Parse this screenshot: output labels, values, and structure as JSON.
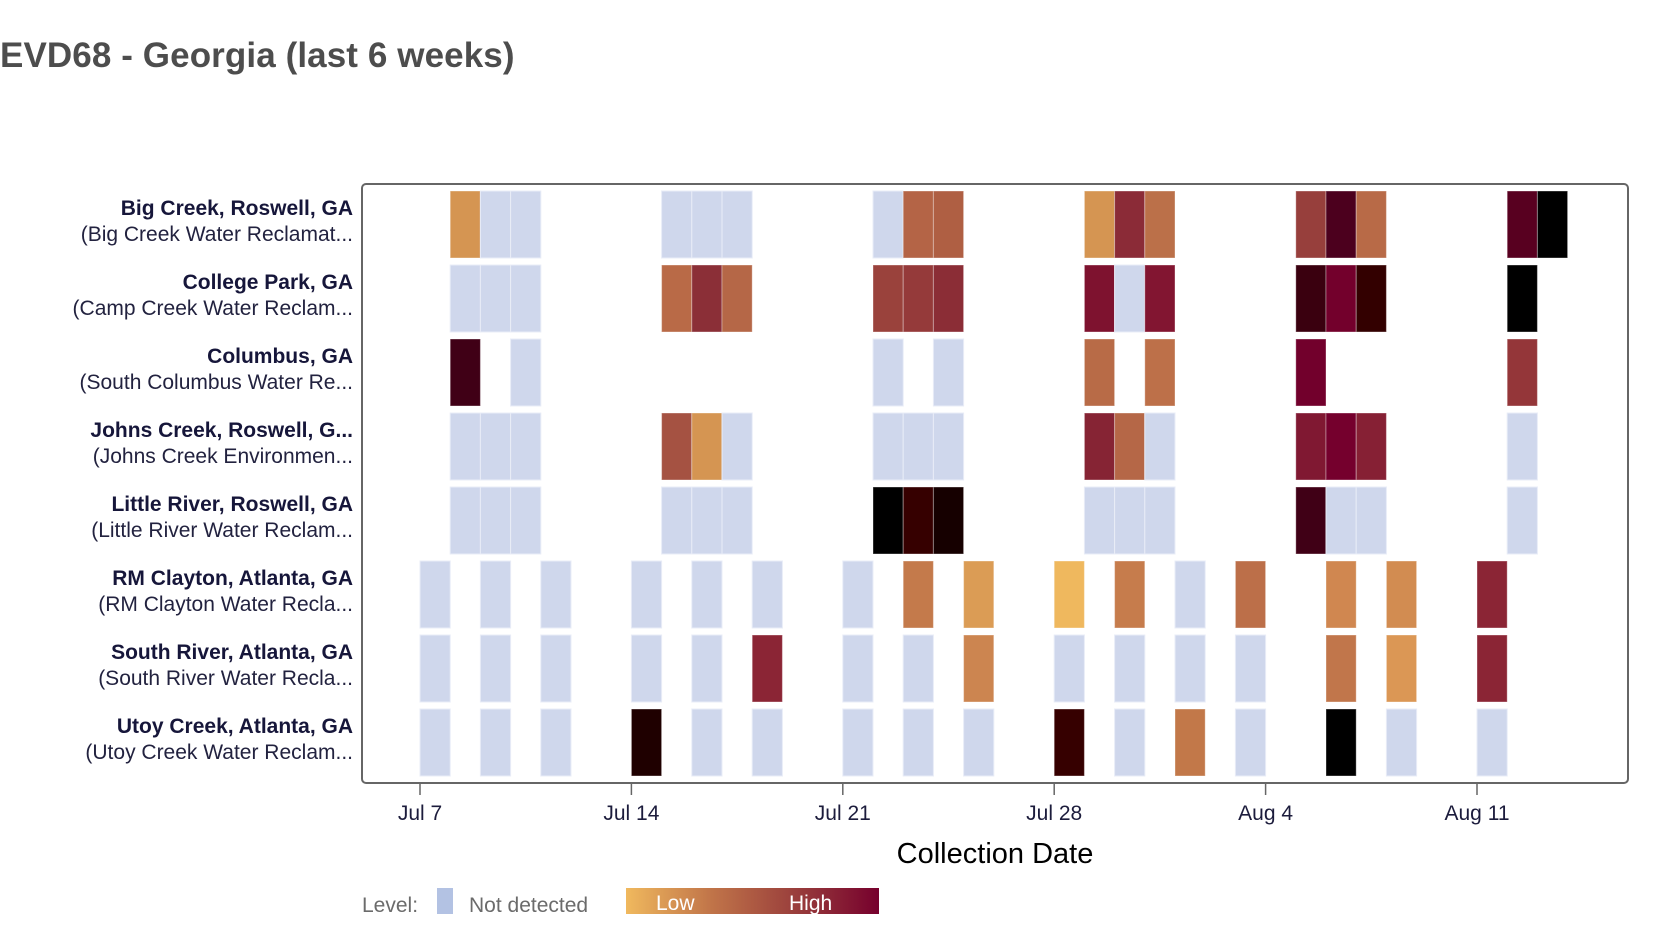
{
  "title": "EVD68 - Georgia (last 6 weeks)",
  "legend": {
    "label": "Level:",
    "not_detected_label": "Not detected",
    "not_detected_color": "#b3c2e3",
    "low_label": "Low",
    "high_label": "High",
    "gradient_colors": [
      "#f0b95e",
      "#c17549",
      "#9a3f3c",
      "#76002d"
    ]
  },
  "chart_data": {
    "type": "heatmap",
    "title": "EVD68 - Georgia (last 6 weeks)",
    "xlabel": "Collection Date",
    "ylabel": "",
    "x_ticks": [
      "Jul 7",
      "Jul 14",
      "Jul 21",
      "Jul 28",
      "Aug 4",
      "Aug 11"
    ],
    "x_start_date": "Jul 7",
    "x_range_days": [
      0,
      37
    ],
    "legend_position": "bottom-left",
    "not_detected_fill": "#cfd7ec",
    "rows": [
      {
        "site": "Big Creek, Roswell, GA",
        "facility": "(Big Creek Water Reclamat...",
        "cells": [
          {
            "date": "Jul 8",
            "day": 1,
            "level": "detected",
            "color": "#d59552"
          },
          {
            "date": "Jul 9",
            "day": 2,
            "level": "not_detected"
          },
          {
            "date": "Jul 10",
            "day": 3,
            "level": "not_detected"
          },
          {
            "date": "Jul 15",
            "day": 8,
            "level": "not_detected"
          },
          {
            "date": "Jul 16",
            "day": 9,
            "level": "not_detected"
          },
          {
            "date": "Jul 17",
            "day": 10,
            "level": "not_detected"
          },
          {
            "date": "Jul 22",
            "day": 15,
            "level": "not_detected"
          },
          {
            "date": "Jul 23",
            "day": 16,
            "level": "detected",
            "color": "#b46446"
          },
          {
            "date": "Jul 24",
            "day": 17,
            "level": "detected",
            "color": "#af5f43"
          },
          {
            "date": "Jul 29",
            "day": 22,
            "level": "detected",
            "color": "#d59552"
          },
          {
            "date": "Jul 30",
            "day": 23,
            "level": "detected",
            "color": "#8b2b37"
          },
          {
            "date": "Jul 31",
            "day": 24,
            "level": "detected",
            "color": "#bb7049"
          },
          {
            "date": "Aug 5",
            "day": 29,
            "level": "detected",
            "color": "#973f3c"
          },
          {
            "date": "Aug 6",
            "day": 30,
            "level": "detected",
            "color": "#4c001e"
          },
          {
            "date": "Aug 7",
            "day": 31,
            "level": "detected",
            "color": "#b86a47"
          },
          {
            "date": "Aug 12",
            "day": 36,
            "level": "detected",
            "color": "#580020"
          },
          {
            "date": "Aug 13",
            "day": 37,
            "level": "detected",
            "color": "#000000"
          }
        ]
      },
      {
        "site": "College Park, GA",
        "facility": "(Camp Creek Water Reclam...",
        "cells": [
          {
            "date": "Jul 8",
            "day": 1,
            "level": "not_detected"
          },
          {
            "date": "Jul 9",
            "day": 2,
            "level": "not_detected"
          },
          {
            "date": "Jul 10",
            "day": 3,
            "level": "not_detected"
          },
          {
            "date": "Jul 15",
            "day": 8,
            "level": "detected",
            "color": "#b96a47"
          },
          {
            "date": "Jul 16",
            "day": 9,
            "level": "detected",
            "color": "#8b2f37"
          },
          {
            "date": "Jul 17",
            "day": 10,
            "level": "detected",
            "color": "#b56747"
          },
          {
            "date": "Jul 22",
            "day": 15,
            "level": "detected",
            "color": "#9a423c"
          },
          {
            "date": "Jul 23",
            "day": 16,
            "level": "detected",
            "color": "#953a3a"
          },
          {
            "date": "Jul 24",
            "day": 17,
            "level": "detected",
            "color": "#8b2d36"
          },
          {
            "date": "Jul 29",
            "day": 22,
            "level": "detected",
            "color": "#7e122f"
          },
          {
            "date": "Jul 30",
            "day": 23,
            "level": "not_detected"
          },
          {
            "date": "Jul 31",
            "day": 24,
            "level": "detected",
            "color": "#821531"
          },
          {
            "date": "Aug 5",
            "day": 29,
            "level": "detected",
            "color": "#3a000f"
          },
          {
            "date": "Aug 6",
            "day": 30,
            "level": "detected",
            "color": "#73002c"
          },
          {
            "date": "Aug 7",
            "day": 31,
            "level": "detected",
            "color": "#330000"
          },
          {
            "date": "Aug 12",
            "day": 36,
            "level": "detected",
            "color": "#000000"
          }
        ]
      },
      {
        "site": "Columbus, GA",
        "facility": "(South Columbus Water Re...",
        "cells": [
          {
            "date": "Jul 8",
            "day": 1,
            "level": "detected",
            "color": "#400016"
          },
          {
            "date": "Jul 10",
            "day": 3,
            "level": "not_detected"
          },
          {
            "date": "Jul 22",
            "day": 15,
            "level": "not_detected"
          },
          {
            "date": "Jul 24",
            "day": 17,
            "level": "not_detected"
          },
          {
            "date": "Jul 29",
            "day": 22,
            "level": "detected",
            "color": "#b86b47"
          },
          {
            "date": "Jul 31",
            "day": 24,
            "level": "detected",
            "color": "#bd7049"
          },
          {
            "date": "Aug 5",
            "day": 29,
            "level": "detected",
            "color": "#72002c"
          },
          {
            "date": "Aug 12",
            "day": 36,
            "level": "detected",
            "color": "#943639"
          }
        ]
      },
      {
        "site": "Johns Creek, Roswell, G...",
        "facility": "(Johns Creek Environmen...",
        "cells": [
          {
            "date": "Jul 8",
            "day": 1,
            "level": "not_detected"
          },
          {
            "date": "Jul 9",
            "day": 2,
            "level": "not_detected"
          },
          {
            "date": "Jul 10",
            "day": 3,
            "level": "not_detected"
          },
          {
            "date": "Jul 15",
            "day": 8,
            "level": "detected",
            "color": "#a55242"
          },
          {
            "date": "Jul 16",
            "day": 9,
            "level": "detected",
            "color": "#d59552"
          },
          {
            "date": "Jul 17",
            "day": 10,
            "level": "not_detected"
          },
          {
            "date": "Jul 22",
            "day": 15,
            "level": "not_detected"
          },
          {
            "date": "Jul 23",
            "day": 16,
            "level": "not_detected"
          },
          {
            "date": "Jul 24",
            "day": 17,
            "level": "not_detected"
          },
          {
            "date": "Jul 29",
            "day": 22,
            "level": "detected",
            "color": "#862434"
          },
          {
            "date": "Jul 30",
            "day": 23,
            "level": "detected",
            "color": "#b56747"
          },
          {
            "date": "Jul 31",
            "day": 24,
            "level": "not_detected"
          },
          {
            "date": "Aug 5",
            "day": 29,
            "level": "detected",
            "color": "#801832"
          },
          {
            "date": "Aug 6",
            "day": 30,
            "level": "detected",
            "color": "#75002d"
          },
          {
            "date": "Aug 7",
            "day": 31,
            "level": "detected",
            "color": "#862034"
          },
          {
            "date": "Aug 12",
            "day": 36,
            "level": "not_detected"
          }
        ]
      },
      {
        "site": "Little River, Roswell, GA",
        "facility": "(Little River Water Reclam...",
        "cells": [
          {
            "date": "Jul 8",
            "day": 1,
            "level": "not_detected"
          },
          {
            "date": "Jul 9",
            "day": 2,
            "level": "not_detected"
          },
          {
            "date": "Jul 10",
            "day": 3,
            "level": "not_detected"
          },
          {
            "date": "Jul 15",
            "day": 8,
            "level": "not_detected"
          },
          {
            "date": "Jul 16",
            "day": 9,
            "level": "not_detected"
          },
          {
            "date": "Jul 17",
            "day": 10,
            "level": "not_detected"
          },
          {
            "date": "Jul 22",
            "day": 15,
            "level": "detected",
            "color": "#000000"
          },
          {
            "date": "Jul 23",
            "day": 16,
            "level": "detected",
            "color": "#360000"
          },
          {
            "date": "Jul 24",
            "day": 17,
            "level": "detected",
            "color": "#160000"
          },
          {
            "date": "Jul 29",
            "day": 22,
            "level": "not_detected"
          },
          {
            "date": "Jul 30",
            "day": 23,
            "level": "not_detected"
          },
          {
            "date": "Jul 31",
            "day": 24,
            "level": "not_detected"
          },
          {
            "date": "Aug 5",
            "day": 29,
            "level": "detected",
            "color": "#400016"
          },
          {
            "date": "Aug 6",
            "day": 30,
            "level": "not_detected"
          },
          {
            "date": "Aug 7",
            "day": 31,
            "level": "not_detected"
          },
          {
            "date": "Aug 12",
            "day": 36,
            "level": "not_detected"
          }
        ]
      },
      {
        "site": "RM Clayton, Atlanta, GA",
        "facility": "(RM Clayton Water Recla...",
        "cells": [
          {
            "date": "Jul 7",
            "day": 0,
            "level": "not_detected"
          },
          {
            "date": "Jul 9",
            "day": 2,
            "level": "not_detected"
          },
          {
            "date": "Jul 11",
            "day": 4,
            "level": "not_detected"
          },
          {
            "date": "Jul 14",
            "day": 7,
            "level": "not_detected"
          },
          {
            "date": "Jul 16",
            "day": 9,
            "level": "not_detected"
          },
          {
            "date": "Jul 18",
            "day": 11,
            "level": "not_detected"
          },
          {
            "date": "Jul 21",
            "day": 14,
            "level": "not_detected"
          },
          {
            "date": "Jul 23",
            "day": 16,
            "level": "detected",
            "color": "#c47a4b"
          },
          {
            "date": "Jul 25",
            "day": 18,
            "level": "detected",
            "color": "#db9c55"
          },
          {
            "date": "Jul 28",
            "day": 21,
            "level": "detected",
            "color": "#efb85e"
          },
          {
            "date": "Jul 30",
            "day": 23,
            "level": "detected",
            "color": "#c67c4c"
          },
          {
            "date": "Aug 1",
            "day": 25,
            "level": "not_detected"
          },
          {
            "date": "Aug 3",
            "day": 27,
            "level": "detected",
            "color": "#bc6f49"
          },
          {
            "date": "Aug 6",
            "day": 30,
            "level": "detected",
            "color": "#d08750"
          },
          {
            "date": "Aug 8",
            "day": 32,
            "level": "detected",
            "color": "#d28c51"
          },
          {
            "date": "Aug 11",
            "day": 35,
            "level": "detected",
            "color": "#8b2535"
          }
        ]
      },
      {
        "site": "South River, Atlanta, GA",
        "facility": "(South River Water Recla...",
        "cells": [
          {
            "date": "Jul 7",
            "day": 0,
            "level": "not_detected"
          },
          {
            "date": "Jul 9",
            "day": 2,
            "level": "not_detected"
          },
          {
            "date": "Jul 11",
            "day": 4,
            "level": "not_detected"
          },
          {
            "date": "Jul 14",
            "day": 7,
            "level": "not_detected"
          },
          {
            "date": "Jul 16",
            "day": 9,
            "level": "not_detected"
          },
          {
            "date": "Jul 18",
            "day": 11,
            "level": "detected",
            "color": "#8b2535"
          },
          {
            "date": "Jul 21",
            "day": 14,
            "level": "not_detected"
          },
          {
            "date": "Jul 23",
            "day": 16,
            "level": "not_detected"
          },
          {
            "date": "Jul 25",
            "day": 18,
            "level": "detected",
            "color": "#cc8550"
          },
          {
            "date": "Jul 28",
            "day": 21,
            "level": "not_detected"
          },
          {
            "date": "Jul 30",
            "day": 23,
            "level": "not_detected"
          },
          {
            "date": "Aug 1",
            "day": 25,
            "level": "not_detected"
          },
          {
            "date": "Aug 3",
            "day": 27,
            "level": "not_detected"
          },
          {
            "date": "Aug 6",
            "day": 30,
            "level": "detected",
            "color": "#c1764b"
          },
          {
            "date": "Aug 8",
            "day": 32,
            "level": "detected",
            "color": "#db9755"
          },
          {
            "date": "Aug 11",
            "day": 35,
            "level": "detected",
            "color": "#8b2535"
          }
        ]
      },
      {
        "site": "Utoy Creek, Atlanta, GA",
        "facility": "(Utoy Creek Water Reclam...",
        "cells": [
          {
            "date": "Jul 7",
            "day": 0,
            "level": "not_detected"
          },
          {
            "date": "Jul 9",
            "day": 2,
            "level": "not_detected"
          },
          {
            "date": "Jul 11",
            "day": 4,
            "level": "not_detected"
          },
          {
            "date": "Jul 14",
            "day": 7,
            "level": "detected",
            "color": "#1f0000"
          },
          {
            "date": "Jul 16",
            "day": 9,
            "level": "not_detected"
          },
          {
            "date": "Jul 18",
            "day": 11,
            "level": "not_detected"
          },
          {
            "date": "Jul 21",
            "day": 14,
            "level": "not_detected"
          },
          {
            "date": "Jul 23",
            "day": 16,
            "level": "not_detected"
          },
          {
            "date": "Jul 25",
            "day": 18,
            "level": "not_detected"
          },
          {
            "date": "Jul 28",
            "day": 21,
            "level": "detected",
            "color": "#360000"
          },
          {
            "date": "Jul 30",
            "day": 23,
            "level": "not_detected"
          },
          {
            "date": "Aug 1",
            "day": 25,
            "level": "detected",
            "color": "#c27849"
          },
          {
            "date": "Aug 3",
            "day": 27,
            "level": "not_detected"
          },
          {
            "date": "Aug 6",
            "day": 30,
            "level": "detected",
            "color": "#000000"
          },
          {
            "date": "Aug 8",
            "day": 32,
            "level": "not_detected"
          },
          {
            "date": "Aug 11",
            "day": 35,
            "level": "not_detected"
          }
        ]
      }
    ]
  }
}
